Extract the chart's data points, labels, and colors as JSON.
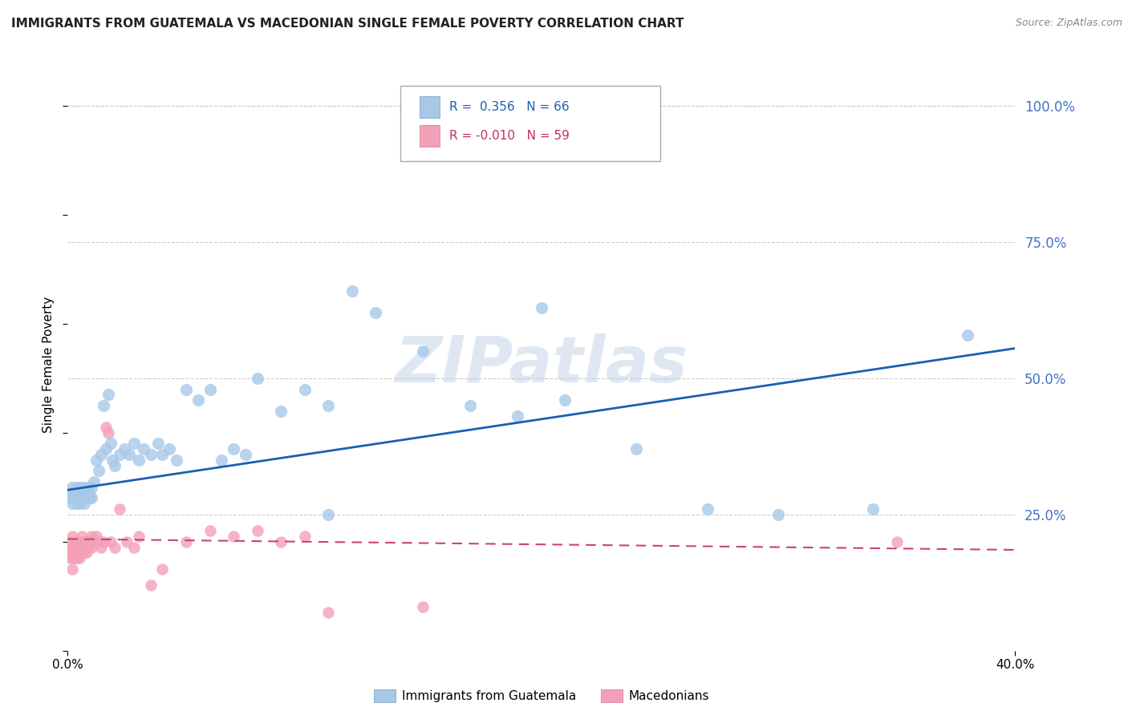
{
  "title": "IMMIGRANTS FROM GUATEMALA VS MACEDONIAN SINGLE FEMALE POVERTY CORRELATION CHART",
  "source": "Source: ZipAtlas.com",
  "ylabel": "Single Female Poverty",
  "right_yticks": [
    "100.0%",
    "75.0%",
    "50.0%",
    "25.0%"
  ],
  "right_ytick_vals": [
    1.0,
    0.75,
    0.5,
    0.25
  ],
  "xlim": [
    0.0,
    0.4
  ],
  "ylim": [
    0.0,
    1.05
  ],
  "legend_series": [
    "Immigrants from Guatemala",
    "Macedonians"
  ],
  "blue_color": "#a8c8e8",
  "pink_color": "#f4a0b8",
  "trendline_blue": "#1a5fb4",
  "trendline_pink": "#cc4466",
  "watermark": "ZIPatlas",
  "blue_R": 0.356,
  "pink_R": -0.01,
  "blue_N": 66,
  "pink_N": 59,
  "guatemala_x": [
    0.001,
    0.001,
    0.002,
    0.002,
    0.003,
    0.003,
    0.004,
    0.004,
    0.005,
    0.005,
    0.005,
    0.006,
    0.006,
    0.007,
    0.007,
    0.008,
    0.008,
    0.009,
    0.009,
    0.01,
    0.01,
    0.011,
    0.012,
    0.013,
    0.014,
    0.015,
    0.016,
    0.017,
    0.018,
    0.019,
    0.02,
    0.022,
    0.024,
    0.026,
    0.028,
    0.03,
    0.032,
    0.035,
    0.038,
    0.04,
    0.043,
    0.046,
    0.05,
    0.055,
    0.06,
    0.065,
    0.07,
    0.075,
    0.08,
    0.09,
    0.1,
    0.11,
    0.12,
    0.13,
    0.15,
    0.17,
    0.19,
    0.21,
    0.24,
    0.27,
    0.3,
    0.34,
    0.38,
    0.15,
    0.2,
    0.11
  ],
  "guatemala_y": [
    0.28,
    0.29,
    0.27,
    0.3,
    0.28,
    0.29,
    0.27,
    0.3,
    0.28,
    0.27,
    0.3,
    0.29,
    0.28,
    0.3,
    0.27,
    0.29,
    0.3,
    0.28,
    0.29,
    0.28,
    0.3,
    0.31,
    0.35,
    0.33,
    0.36,
    0.45,
    0.37,
    0.47,
    0.38,
    0.35,
    0.34,
    0.36,
    0.37,
    0.36,
    0.38,
    0.35,
    0.37,
    0.36,
    0.38,
    0.36,
    0.37,
    0.35,
    0.48,
    0.46,
    0.48,
    0.35,
    0.37,
    0.36,
    0.5,
    0.44,
    0.48,
    0.45,
    0.66,
    0.62,
    0.55,
    0.45,
    0.43,
    0.46,
    0.37,
    0.26,
    0.25,
    0.26,
    0.58,
    0.93,
    0.63,
    0.25
  ],
  "macedonian_x": [
    0.001,
    0.001,
    0.001,
    0.001,
    0.002,
    0.002,
    0.002,
    0.002,
    0.002,
    0.003,
    0.003,
    0.003,
    0.003,
    0.004,
    0.004,
    0.004,
    0.004,
    0.005,
    0.005,
    0.005,
    0.005,
    0.006,
    0.006,
    0.006,
    0.007,
    0.007,
    0.007,
    0.008,
    0.008,
    0.008,
    0.009,
    0.009,
    0.01,
    0.01,
    0.01,
    0.011,
    0.012,
    0.013,
    0.014,
    0.015,
    0.016,
    0.017,
    0.018,
    0.02,
    0.022,
    0.025,
    0.028,
    0.03,
    0.035,
    0.04,
    0.05,
    0.06,
    0.07,
    0.08,
    0.09,
    0.1,
    0.11,
    0.15,
    0.35
  ],
  "macedonian_y": [
    0.2,
    0.19,
    0.18,
    0.17,
    0.21,
    0.19,
    0.18,
    0.15,
    0.17,
    0.2,
    0.19,
    0.18,
    0.17,
    0.2,
    0.19,
    0.18,
    0.17,
    0.2,
    0.19,
    0.18,
    0.17,
    0.2,
    0.21,
    0.18,
    0.2,
    0.19,
    0.18,
    0.2,
    0.19,
    0.18,
    0.2,
    0.19,
    0.2,
    0.21,
    0.19,
    0.2,
    0.21,
    0.2,
    0.19,
    0.2,
    0.41,
    0.4,
    0.2,
    0.19,
    0.26,
    0.2,
    0.19,
    0.21,
    0.12,
    0.15,
    0.2,
    0.22,
    0.21,
    0.22,
    0.2,
    0.21,
    0.07,
    0.08,
    0.2
  ]
}
